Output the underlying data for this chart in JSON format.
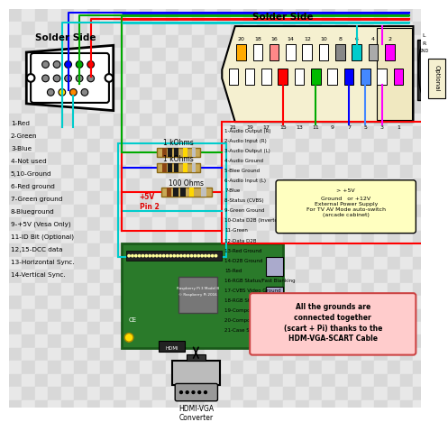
{
  "vga_label": "Solder Side",
  "scart_label": "Solder Side",
  "vga_pins_left": [
    "1-Red",
    "2-Green",
    "3-Blue",
    "4-Not used",
    "5,10-Ground",
    "6-Red ground",
    "7-Green ground",
    "8-Blueground",
    "9-+5V (Vesa Only)",
    "11-ID Bit (Optional)",
    "12,15-DCC data",
    "13-Horizontal Sync.",
    "14-Vertical Sync."
  ],
  "scart_pins": [
    "1-Audio Output (R)",
    "2-Audio Input (R)",
    "3-Audio Output (L)",
    "4-Audio Ground",
    "5-Blee Ground",
    "6-Audio Input (L)",
    "7-Blue",
    "8-Status (CVBS)",
    "9-Green Ground",
    "10-Data D2B (Inverted)",
    "11-Green",
    "12-Data D2B",
    "13-Red Ground",
    "14-D2B Ground",
    "15-Red",
    "16-RGB Status/Fast Blanking",
    "17-CVBS Video Ground",
    "18-RGB Status Ground",
    "19-Composite Video Output",
    "20-Composite Video Input",
    "21-Case Shield"
  ],
  "resistors": [
    "1 kOhms",
    "1 kOhms",
    "100 Ohms"
  ],
  "note1": "+5V\nPin 2",
  "note2": "Ground   or +12V\nExternal Power Supply\nFor TV AV Mode auto-switch\n(arcade cabinet)",
  "note3": "All the grounds are\nconnected together\n(scart + Pi) thanks to the\nHDM-VGA-SCART Cable",
  "note4": "Optional",
  "converter_label": "HDMI-VGA\nConverter",
  "scart_top_numbers_even": [
    "20",
    "18",
    "16",
    "14",
    "12",
    "10",
    "8",
    "6",
    "4",
    "2"
  ],
  "scart_top_numbers_odd": [
    "21",
    "19",
    "17",
    "15",
    "13",
    "11",
    "9",
    "7",
    "5",
    "3",
    "1"
  ],
  "even_pin_colors": [
    "#ffaa00",
    "white",
    "#ff8888",
    "white",
    "white",
    "white",
    "#888888",
    "#00cccc",
    "#aaaaaa",
    "#ff00ff"
  ],
  "odd_pin_colors": [
    "white",
    "white",
    "white",
    "#ff0000",
    "white",
    "#00bb00",
    "white",
    "#0000ff",
    "#4488ff",
    "white",
    "#ff00ff"
  ],
  "top_wire_colors": [
    "#0000ff",
    "#00aa00",
    "#ff0000",
    "#00cccc"
  ],
  "bg_checker_a": "#d8d8d8",
  "bg_checker_b": "#e8e8e8"
}
